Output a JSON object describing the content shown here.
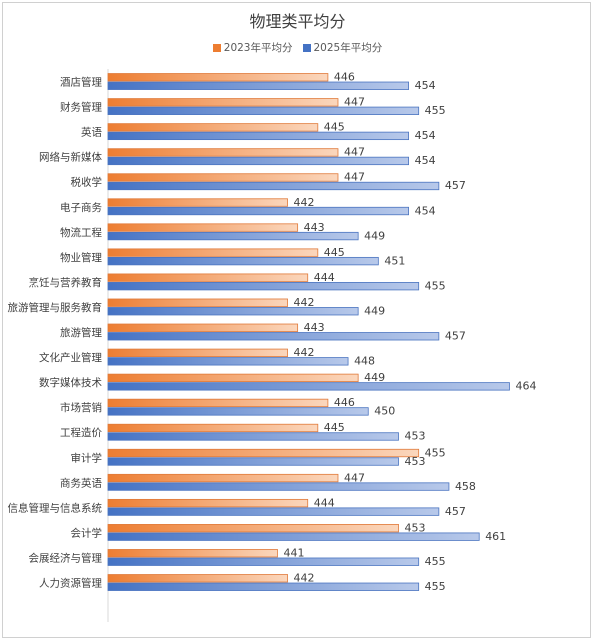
{
  "chart_data": {
    "type": "bar",
    "orientation": "horizontal",
    "title": "物理类平均分",
    "categories": [
      "酒店管理",
      "财务管理",
      "英语",
      "网络与新媒体",
      "税收学",
      "电子商务",
      "物流工程",
      "物业管理",
      "烹饪与营养教育",
      "旅游管理与服务教育",
      "旅游管理",
      "文化产业管理",
      "数字媒体技术",
      "市场营销",
      "工程造价",
      "审计学",
      "商务英语",
      "信息管理与信息系统",
      "会计学",
      "会展经济与管理",
      "人力资源管理"
    ],
    "series": [
      {
        "name": "2023年平均分",
        "color": "#ed7d31",
        "values": [
          446,
          447,
          445,
          447,
          447,
          442,
          443,
          445,
          444,
          442,
          443,
          442,
          449,
          446,
          445,
          455,
          447,
          444,
          453,
          441,
          442
        ]
      },
      {
        "name": "2025年平均分",
        "color": "#4472c4",
        "values": [
          454,
          455,
          454,
          454,
          457,
          454,
          449,
          451,
          455,
          449,
          457,
          448,
          464,
          450,
          453,
          453,
          458,
          457,
          461,
          455,
          455
        ]
      }
    ],
    "legend_position": "top",
    "grid": false
  }
}
